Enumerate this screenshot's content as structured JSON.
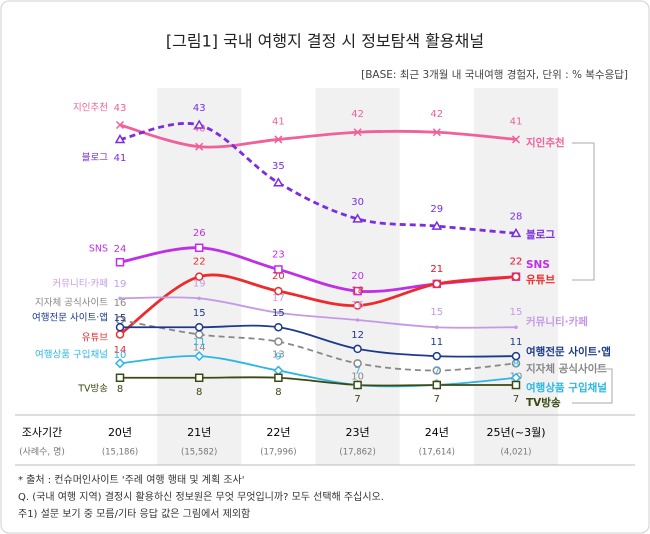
{
  "chart_data": {
    "type": "line",
    "title": "[그림1] 국내 여행지 결정 시 정보탐색 활용채널",
    "subtitle": "[BASE: 최근 3개월 내 국내여행 경험자, 단위 : % 복수응답]",
    "period_label": "조사기간",
    "sample_label": "(사례수, 명)",
    "categories": [
      "20년",
      "21년",
      "22년",
      "23년",
      "24년",
      "25년(~3월)"
    ],
    "samples": [
      "(15,186)",
      "(15,582)",
      "(17,996)",
      "(17,862)",
      "(17,614)",
      "(4,021)"
    ],
    "series": [
      {
        "name": "지인추천",
        "color": "#f0609a",
        "marker": "x",
        "dashed": false,
        "values": [
          43,
          40,
          41,
          42,
          42,
          41
        ]
      },
      {
        "name": "블로그",
        "color": "#7a2ee0",
        "marker": "triangle",
        "dashed": true,
        "values": [
          41,
          43,
          35,
          30,
          29,
          28
        ]
      },
      {
        "name": "SNS",
        "color": "#c02fe8",
        "marker": "square",
        "dashed": false,
        "values": [
          24,
          26,
          23,
          20,
          21,
          22
        ]
      },
      {
        "name": "유튜브",
        "color": "#ee2b2b",
        "marker": "circle",
        "dashed": false,
        "values": [
          14,
          22,
          20,
          18,
          21,
          22
        ]
      },
      {
        "name": "커뮤니티·카페",
        "color": "#c49ae8",
        "marker": "none",
        "dashed": false,
        "values": [
          19,
          19,
          17,
          16,
          15,
          15
        ]
      },
      {
        "name": "지자체 공식사이트",
        "color": "#888888",
        "marker": "circle",
        "dashed": true,
        "values": [
          16,
          14,
          13,
          10,
          9,
          10
        ]
      },
      {
        "name": "여행전문 사이트·앱",
        "color": "#1c3a8c",
        "marker": "circle",
        "dashed": false,
        "values": [
          15,
          15,
          15,
          12,
          11,
          11
        ]
      },
      {
        "name": "여행상품 구입채널",
        "color": "#2cb6e8",
        "marker": "diamond",
        "dashed": false,
        "values": [
          10,
          11,
          9,
          7,
          7,
          8
        ]
      },
      {
        "name": "TV방송",
        "color": "#3a4a12",
        "marker": "square",
        "dashed": false,
        "values": [
          8,
          8,
          8,
          7,
          7,
          7
        ]
      }
    ],
    "notes": [
      "* 출처 : 컨슈머인사이트 '주례 여행 행태 및 계획 조사'",
      "Q. (국내 여행 지역) 결정시 활용하신 정보원은 무엇 무엇입니까? 모두 선택해 주십시오.",
      "주1) 설문 보기 중 모름/기타 응답 값은 그림에서 제외함"
    ]
  }
}
